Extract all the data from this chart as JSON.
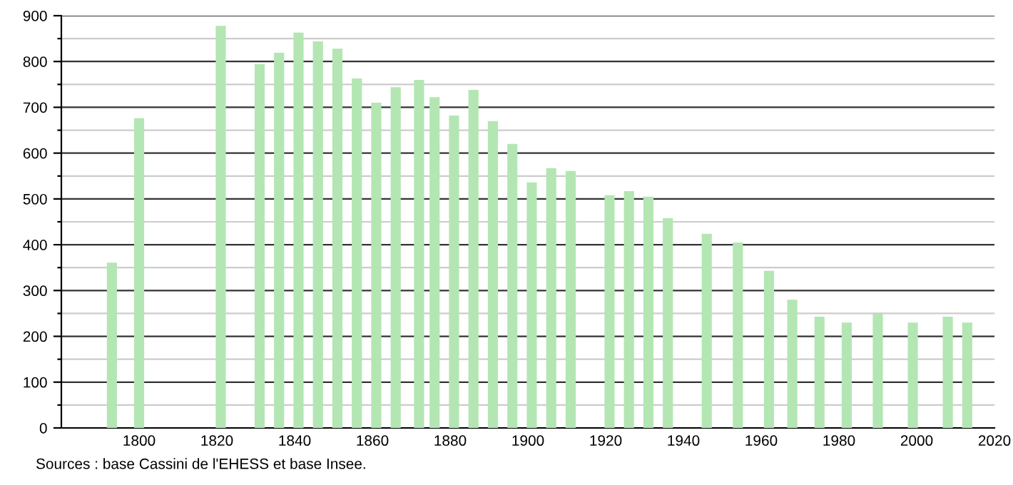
{
  "chart_data": {
    "type": "bar",
    "color": "#b3e6b3",
    "x": [
      1793,
      1800,
      1821,
      1831,
      1836,
      1841,
      1846,
      1851,
      1856,
      1861,
      1866,
      1872,
      1876,
      1881,
      1886,
      1891,
      1896,
      1901,
      1906,
      1911,
      1921,
      1926,
      1931,
      1936,
      1946,
      1954,
      1962,
      1968,
      1975,
      1982,
      1990,
      1999,
      2008,
      2013
    ],
    "values": [
      361,
      676,
      878,
      794,
      819,
      863,
      844,
      828,
      763,
      710,
      744,
      760,
      722,
      682,
      738,
      670,
      620,
      536,
      567,
      561,
      508,
      517,
      505,
      458,
      424,
      405,
      343,
      280,
      243,
      230,
      249,
      230,
      243,
      230
    ],
    "xlim": [
      1780,
      2020
    ],
    "xticks": [
      1800,
      1820,
      1840,
      1860,
      1880,
      1900,
      1920,
      1940,
      1960,
      1980,
      2000,
      2020
    ],
    "ylim": [
      0,
      900
    ],
    "yticks": [
      0,
      {
        "value": 50,
        "label": null
      },
      100,
      {
        "value": 150,
        "label": null
      },
      200,
      {
        "value": 250,
        "label": null
      },
      300,
      {
        "value": 350,
        "label": null
      },
      400,
      {
        "value": 450,
        "label": null
      },
      500,
      {
        "value": 550,
        "label": null
      },
      600,
      {
        "value": 650,
        "label": null
      },
      700,
      {
        "value": 750,
        "label": null
      },
      800,
      {
        "value": 850,
        "label": null
      },
      900
    ],
    "grid": "y",
    "annotations": [
      "Sources : base Cassini de l'EHESS et base Insee."
    ]
  }
}
